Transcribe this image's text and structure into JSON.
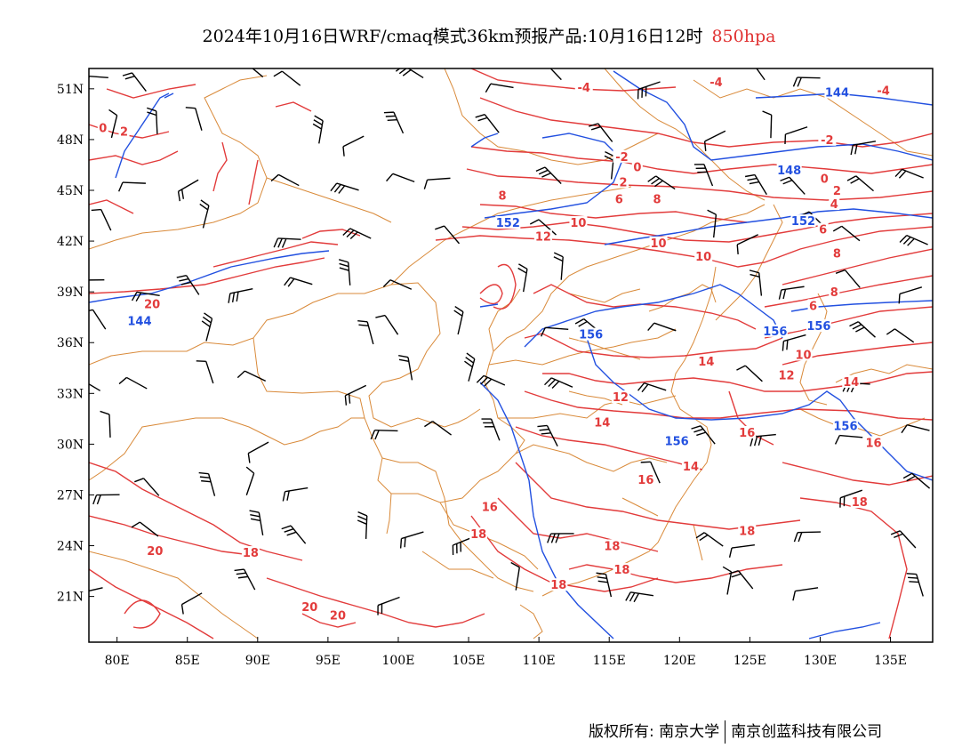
{
  "title": {
    "main": "2024年10月16日WRF/cmaq模式36km预报产品:10月16日12时",
    "level": "850hpa"
  },
  "axes": {
    "lat_labels": [
      "51N",
      "48N",
      "45N",
      "42N",
      "39N",
      "36N",
      "33N",
      "30N",
      "27N",
      "24N",
      "21N"
    ],
    "lat_values": [
      51,
      48,
      45,
      42,
      39,
      36,
      33,
      30,
      27,
      24,
      21
    ],
    "lon_labels": [
      "80E",
      "85E",
      "90E",
      "95E",
      "100E",
      "105E",
      "110E",
      "115E",
      "120E",
      "125E",
      "130E",
      "135E"
    ],
    "lon_values": [
      80,
      85,
      90,
      95,
      100,
      105,
      110,
      115,
      120,
      125,
      130,
      135
    ],
    "lon_range": [
      78,
      138
    ],
    "lat_range": [
      18.3,
      52.2
    ]
  },
  "colors": {
    "temperature_contour": "#e23b3b",
    "height_contour": "#2250e0",
    "boundary": "#d98a3a",
    "wind_barb": "#000000"
  },
  "temperature_labels": [
    {
      "text": "-4",
      "lon": 113.2,
      "lat": 51.0
    },
    {
      "text": "-4",
      "lon": 122.6,
      "lat": 51.3
    },
    {
      "text": "-4",
      "lon": 134.5,
      "lat": 50.8
    },
    {
      "text": "0",
      "lon": 79.0,
      "lat": 48.6
    },
    {
      "text": "2",
      "lon": 80.5,
      "lat": 48.4
    },
    {
      "text": "-2",
      "lon": 115.9,
      "lat": 46.9
    },
    {
      "text": "0",
      "lon": 117.0,
      "lat": 46.3
    },
    {
      "text": "2",
      "lon": 116.0,
      "lat": 45.4
    },
    {
      "text": "-2",
      "lon": 130.5,
      "lat": 47.9
    },
    {
      "text": "0",
      "lon": 130.3,
      "lat": 45.6
    },
    {
      "text": "2",
      "lon": 131.2,
      "lat": 44.9
    },
    {
      "text": "4",
      "lon": 131.0,
      "lat": 44.1
    },
    {
      "text": "8",
      "lon": 107.4,
      "lat": 44.6
    },
    {
      "text": "6",
      "lon": 115.7,
      "lat": 44.4
    },
    {
      "text": "8",
      "lon": 118.4,
      "lat": 44.4
    },
    {
      "text": "10",
      "lon": 112.8,
      "lat": 43.0
    },
    {
      "text": "12",
      "lon": 110.3,
      "lat": 42.2
    },
    {
      "text": "10",
      "lon": 118.5,
      "lat": 41.8
    },
    {
      "text": "10",
      "lon": 121.7,
      "lat": 41.0
    },
    {
      "text": "6",
      "lon": 130.2,
      "lat": 42.6
    },
    {
      "text": "8",
      "lon": 131.2,
      "lat": 41.2
    },
    {
      "text": "8",
      "lon": 131.0,
      "lat": 38.9
    },
    {
      "text": "6",
      "lon": 129.5,
      "lat": 38.1
    },
    {
      "text": "20",
      "lon": 82.5,
      "lat": 38.2
    },
    {
      "text": "14",
      "lon": 121.9,
      "lat": 34.8
    },
    {
      "text": "10",
      "lon": 128.8,
      "lat": 35.2
    },
    {
      "text": "12",
      "lon": 127.6,
      "lat": 34.0
    },
    {
      "text": "14",
      "lon": 132.2,
      "lat": 33.6
    },
    {
      "text": "12",
      "lon": 115.8,
      "lat": 32.7
    },
    {
      "text": "14",
      "lon": 114.5,
      "lat": 31.2
    },
    {
      "text": "16",
      "lon": 124.8,
      "lat": 30.6
    },
    {
      "text": "16",
      "lon": 133.8,
      "lat": 30.0
    },
    {
      "text": "14",
      "lon": 120.8,
      "lat": 28.6
    },
    {
      "text": "16",
      "lon": 117.6,
      "lat": 27.8
    },
    {
      "text": "16",
      "lon": 106.5,
      "lat": 26.2
    },
    {
      "text": "18",
      "lon": 132.8,
      "lat": 26.5
    },
    {
      "text": "18",
      "lon": 105.7,
      "lat": 24.6
    },
    {
      "text": "18",
      "lon": 124.8,
      "lat": 24.8
    },
    {
      "text": "20",
      "lon": 82.7,
      "lat": 23.6
    },
    {
      "text": "18",
      "lon": 89.5,
      "lat": 23.5
    },
    {
      "text": "18",
      "lon": 115.2,
      "lat": 23.9
    },
    {
      "text": "18",
      "lon": 115.9,
      "lat": 22.5
    },
    {
      "text": "18",
      "lon": 111.4,
      "lat": 21.6
    },
    {
      "text": "20",
      "lon": 93.7,
      "lat": 20.3
    },
    {
      "text": "20",
      "lon": 95.7,
      "lat": 19.8
    }
  ],
  "height_labels": [
    {
      "text": "144",
      "lon": 131.2,
      "lat": 50.7
    },
    {
      "text": "148",
      "lon": 127.8,
      "lat": 46.1
    },
    {
      "text": "152",
      "lon": 107.8,
      "lat": 43.0
    },
    {
      "text": "152",
      "lon": 128.8,
      "lat": 43.1
    },
    {
      "text": "144",
      "lon": 81.6,
      "lat": 37.2
    },
    {
      "text": "156",
      "lon": 113.7,
      "lat": 36.4
    },
    {
      "text": "156",
      "lon": 126.8,
      "lat": 36.6
    },
    {
      "text": "156",
      "lon": 129.9,
      "lat": 36.9
    },
    {
      "text": "156",
      "lon": 119.8,
      "lat": 30.1
    },
    {
      "text": "156",
      "lon": 131.8,
      "lat": 31.0
    }
  ],
  "footer": {
    "copyright": "版权所有: 南京大学",
    "company": "南京创蓝科技有限公司"
  }
}
